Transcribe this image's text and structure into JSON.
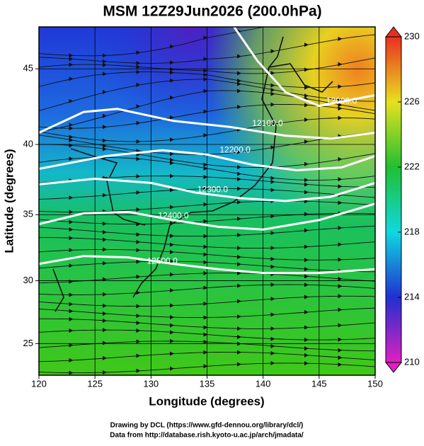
{
  "chart_data": {
    "type": "map",
    "title": "MSM 12Z29Jun2026 (200.0hPa)",
    "x_label": "Longitude (degrees)",
    "y_label": "Latitude  (degrees)",
    "xlim": [
      120,
      150
    ],
    "xticks": [
      120,
      125,
      130,
      135,
      140,
      145,
      150
    ],
    "ylim": [
      22.4,
      47.6
    ],
    "yticks": [
      25,
      30,
      35,
      40,
      45
    ],
    "colorbar": {
      "lim": [
        210,
        230
      ],
      "ticks": [
        210,
        214,
        218,
        222,
        226,
        230
      ],
      "colors": [
        "#e020c0",
        "#2030d0",
        "#10d8e0",
        "#20c030",
        "#e8e020",
        "#e83020"
      ]
    },
    "contours": [
      {
        "value": 12000,
        "label": "12000.0"
      },
      {
        "value": 12100,
        "label": "12100.0"
      },
      {
        "value": 12200,
        "label": "12200.0"
      },
      {
        "value": 12300,
        "label": "12300.0"
      },
      {
        "value": 12400,
        "label": "12400.0"
      },
      {
        "value": 12500,
        "label": "12500.0"
      }
    ],
    "footer": [
      "Drawing by DCL (https://www.gfd-dennou.org/library/dcl/)",
      "Data from http://database.rish.kyoto-u.ac.jp/arch/jmadata/"
    ]
  }
}
